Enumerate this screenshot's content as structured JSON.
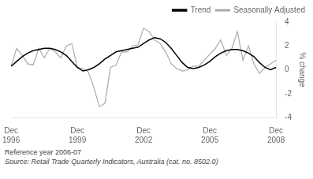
{
  "chart_data": {
    "type": "line",
    "y_label": "% change",
    "categories": [
      "Dec\n1996",
      null,
      null,
      null,
      null,
      null,
      null,
      null,
      null,
      null,
      null,
      null,
      "Dec\n1999",
      null,
      null,
      null,
      null,
      null,
      null,
      null,
      null,
      null,
      null,
      null,
      "Dec\n2002",
      null,
      null,
      null,
      null,
      null,
      null,
      null,
      null,
      null,
      null,
      null,
      "Dec\n2005",
      null,
      null,
      null,
      null,
      null,
      null,
      null,
      null,
      null,
      null,
      null,
      "Dec\n2008"
    ],
    "series": [
      {
        "name": "Trend",
        "color": "#000000",
        "values": [
          0.3,
          0.7,
          1.1,
          1.4,
          1.6,
          1.7,
          1.8,
          1.8,
          1.7,
          1.5,
          1.2,
          0.7,
          0.2,
          -0.1,
          0.0,
          0.2,
          0.5,
          0.9,
          1.2,
          1.5,
          1.6,
          1.7,
          1.8,
          1.9,
          2.2,
          2.5,
          2.7,
          2.6,
          2.3,
          1.8,
          1.2,
          0.6,
          0.2,
          0.1,
          0.2,
          0.4,
          0.7,
          1.1,
          1.4,
          1.6,
          1.7,
          1.7,
          1.6,
          1.4,
          1.1,
          0.6,
          0.2,
          0.0,
          0.2
        ]
      },
      {
        "name": "Seasonally Adjusted",
        "color": "#aaaaaa",
        "values": [
          0.3,
          1.8,
          1.2,
          0.5,
          0.4,
          1.8,
          1.0,
          1.8,
          1.5,
          1.0,
          2.0,
          2.2,
          0.2,
          0.1,
          -0.2,
          -1.5,
          -3.1,
          -2.8,
          0.2,
          0.4,
          1.5,
          1.5,
          2.0,
          2.1,
          3.5,
          3.2,
          2.5,
          2.2,
          1.5,
          0.5,
          0.1,
          -0.1,
          0.0,
          0.3,
          0.3,
          0.8,
          1.3,
          1.8,
          2.5,
          1.2,
          1.8,
          3.2,
          0.8,
          2.0,
          0.5,
          -0.3,
          0.2,
          0.5,
          0.8
        ]
      }
    ],
    "ylim": [
      -4,
      4
    ],
    "yticks": [
      -4,
      -2,
      0,
      2,
      4
    ],
    "grid": false,
    "legend": "upper right",
    "annotations": [
      "Reference year 2006-07",
      "Source: Retail Trade Quarterly Indicators, Australia (cat. no. 8502.0)"
    ]
  }
}
